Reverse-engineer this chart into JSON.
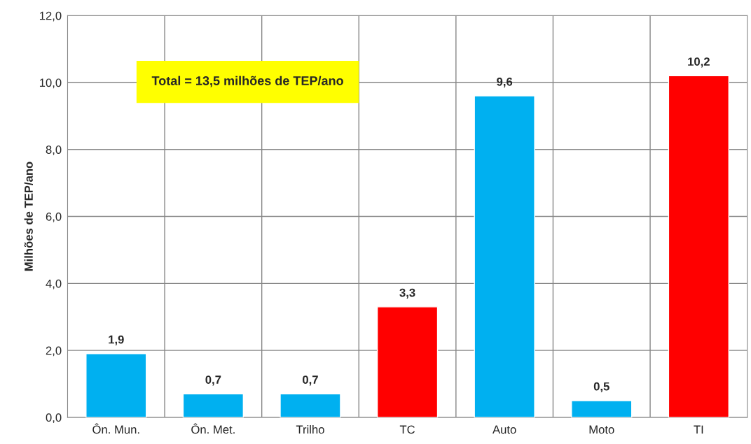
{
  "chart_data": {
    "type": "bar",
    "ylabel": "Milhões de TEP/ano",
    "categories": [
      "Ôn. Mun.",
      "Ôn. Met.",
      "Trilho",
      "TC",
      "Auto",
      "Moto",
      "TI"
    ],
    "values": [
      1.9,
      0.7,
      0.7,
      3.3,
      9.6,
      0.5,
      10.2
    ],
    "colors": [
      "#00b0f0",
      "#00b0f0",
      "#00b0f0",
      "#ff0000",
      "#00b0f0",
      "#00b0f0",
      "#ff0000"
    ],
    "value_labels": [
      "1,9",
      "0,7",
      "0,7",
      "3,3",
      "9,6",
      "0,5",
      "10,2"
    ],
    "ylim": [
      0,
      12
    ],
    "yticks": [
      {
        "value": 0,
        "label": "0,0"
      },
      {
        "value": 2,
        "label": "2,0"
      },
      {
        "value": 4,
        "label": "4,0"
      },
      {
        "value": 6,
        "label": "6,0"
      },
      {
        "value": 8,
        "label": "8,0"
      },
      {
        "value": 10,
        "label": "10,0"
      },
      {
        "value": 12,
        "label": "12,0"
      }
    ],
    "grid": true,
    "annotations": [
      "Total = 13,5 milhões de TEP/ano"
    ]
  }
}
